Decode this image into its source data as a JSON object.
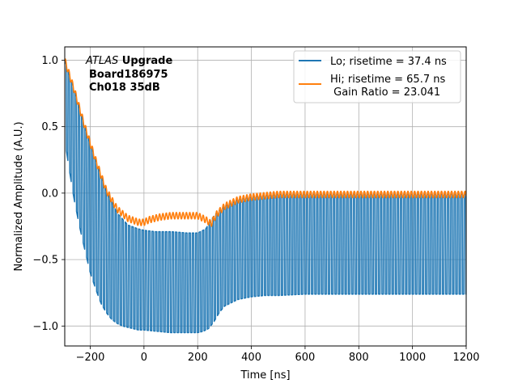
{
  "chart_data": {
    "type": "line",
    "title": "",
    "xlabel": "Time [ns]",
    "ylabel": "Normalized Amplitude (A.U.)",
    "xlim": [
      -295,
      1200
    ],
    "ylim": [
      -1.15,
      1.1
    ],
    "grid": true,
    "x_ticks": [
      -200,
      0,
      200,
      400,
      600,
      800,
      1000,
      1200
    ],
    "x_tick_labels": [
      "−200",
      "0",
      "200",
      "400",
      "600",
      "800",
      "1000",
      "1200"
    ],
    "y_ticks": [
      1.0,
      0.5,
      0.0,
      -0.5,
      -1.0
    ],
    "y_tick_labels": [
      "1.0",
      "0.5",
      "0.0",
      "−0.5",
      "−1.0"
    ],
    "annotation": {
      "line1_italic": "ATLAS",
      "line1_bold": " Upgrade",
      "line2": "Board186975",
      "line3": "Ch018 35dB"
    },
    "legend": {
      "placement": "top-right",
      "entries": [
        {
          "label": "Lo; risetime = 37.4 ns",
          "color": "#1f77b4"
        },
        {
          "label": "Hi; risetime = 65.7 ns",
          "color": "#ff7f0e"
        },
        {
          "label": " Gain Ratio = 23.041",
          "color": ""
        }
      ]
    },
    "series": [
      {
        "name": "Lo",
        "color": "#1f77b4",
        "oscillating": true,
        "period_ns": 12.5,
        "x_start": -295,
        "x_end": 1200,
        "upper_envelope": {
          "x": [
            -295,
            -260,
            -220,
            -180,
            -140,
            -100,
            -60,
            -20,
            0,
            40,
            100,
            160,
            200,
            230,
            250,
            270,
            300,
            350,
            400,
            450,
            500,
            600,
            800,
            1000,
            1200
          ],
          "y": [
            1.0,
            0.78,
            0.5,
            0.25,
            0.02,
            -0.15,
            -0.24,
            -0.27,
            -0.28,
            -0.29,
            -0.29,
            -0.3,
            -0.3,
            -0.27,
            -0.2,
            -0.15,
            -0.1,
            -0.05,
            -0.03,
            -0.02,
            -0.01,
            -0.01,
            -0.01,
            -0.01,
            -0.01
          ]
        },
        "lower_envelope": {
          "x": [
            -295,
            -280,
            -260,
            -240,
            -220,
            -200,
            -180,
            -160,
            -140,
            -120,
            -100,
            -80,
            -60,
            -40,
            -20,
            0,
            50,
            100,
            150,
            200,
            220,
            240,
            260,
            280,
            300,
            350,
            400,
            450,
            500,
            600,
            800,
            1000,
            1200
          ],
          "y": [
            0.4,
            0.2,
            -0.05,
            -0.25,
            -0.43,
            -0.6,
            -0.72,
            -0.83,
            -0.9,
            -0.95,
            -0.98,
            -1.0,
            -1.01,
            -1.02,
            -1.03,
            -1.03,
            -1.04,
            -1.05,
            -1.05,
            -1.05,
            -1.04,
            -1.02,
            -0.97,
            -0.9,
            -0.85,
            -0.8,
            -0.78,
            -0.77,
            -0.77,
            -0.76,
            -0.76,
            -0.76,
            -0.76
          ]
        }
      },
      {
        "name": "Hi",
        "color": "#ff7f0e",
        "oscillating": true,
        "period_ns": 12.5,
        "ripple_amplitude": 0.025,
        "x_start": -295,
        "x_end": 1200,
        "baseline": {
          "x": [
            -295,
            -260,
            -220,
            -180,
            -140,
            -100,
            -60,
            -20,
            0,
            20,
            60,
            100,
            150,
            200,
            230,
            250,
            270,
            300,
            350,
            400,
            450,
            500,
            600,
            800,
            1000,
            1200
          ],
          "y": [
            1.0,
            0.78,
            0.5,
            0.25,
            0.02,
            -0.12,
            -0.19,
            -0.22,
            -0.22,
            -0.2,
            -0.18,
            -0.17,
            -0.17,
            -0.17,
            -0.2,
            -0.23,
            -0.16,
            -0.1,
            -0.05,
            -0.03,
            -0.02,
            -0.01,
            -0.01,
            -0.01,
            -0.01,
            -0.01
          ]
        }
      }
    ]
  }
}
